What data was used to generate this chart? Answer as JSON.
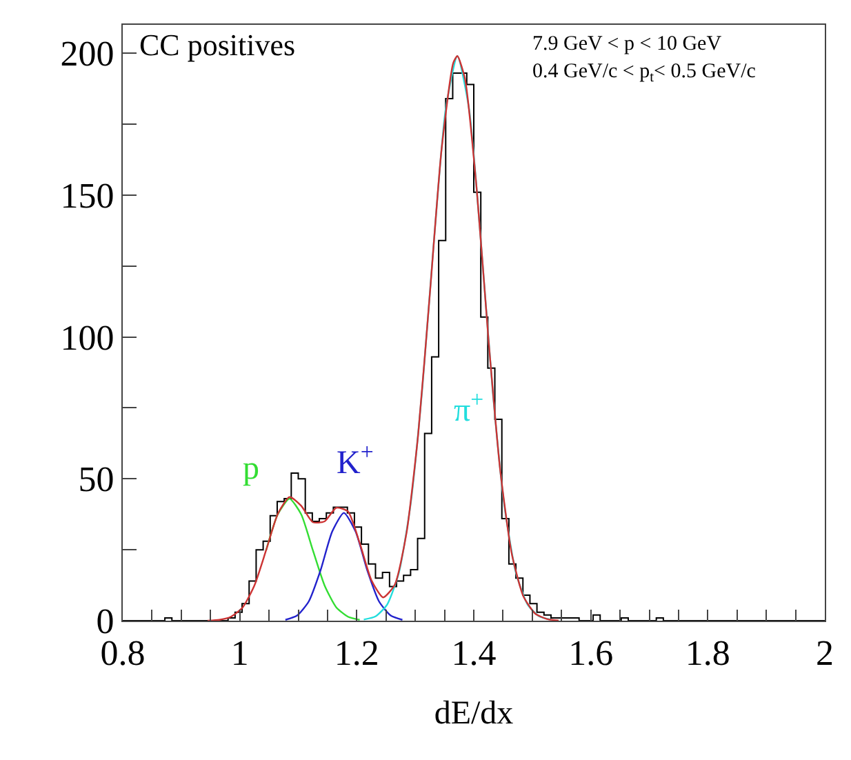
{
  "chart_data": {
    "type": "histogram",
    "xlabel": "dE/dx",
    "annotations": [
      "CC positives",
      "7.9 GeV < p < 10 GeV",
      "0.4 GeV/c < p$_{t}$< 0.5 GeV/c"
    ],
    "bins": [
      0.8,
      0.812,
      0.824,
      0.836,
      0.848,
      0.86,
      0.872,
      0.884,
      0.896,
      0.908,
      0.92,
      0.932,
      0.944,
      0.956,
      0.968,
      0.98,
      0.992,
      1.004,
      1.016,
      1.028,
      1.04,
      1.052,
      1.064,
      1.076,
      1.088,
      1.1,
      1.112,
      1.124,
      1.136,
      1.148,
      1.16,
      1.172,
      1.184,
      1.196,
      1.208,
      1.22,
      1.232,
      1.244,
      1.256,
      1.268,
      1.28,
      1.292,
      1.304,
      1.316,
      1.328,
      1.34,
      1.352,
      1.364,
      1.376,
      1.388,
      1.4,
      1.412,
      1.424,
      1.436,
      1.448,
      1.46,
      1.472,
      1.484,
      1.496,
      1.508,
      1.52,
      1.532,
      1.544,
      1.556,
      1.568,
      1.58,
      1.592,
      1.604,
      1.616,
      1.628,
      1.64,
      1.652,
      1.664,
      1.676,
      1.688,
      1.7,
      1.712,
      1.724,
      1.736,
      1.748,
      1.76,
      1.772,
      1.784,
      1.796,
      1.808,
      1.82,
      1.832,
      1.844,
      1.856,
      1.868,
      1.88,
      1.892,
      1.904,
      1.916,
      1.928,
      1.94,
      1.952,
      1.964,
      1.976,
      1.988,
      2.0
    ],
    "values": [
      0,
      0,
      0,
      0,
      0,
      0,
      1,
      0,
      0,
      0,
      0,
      0,
      0,
      0,
      0,
      1,
      3,
      6,
      14,
      25,
      28,
      37,
      42,
      43,
      52,
      50,
      38,
      35,
      36,
      38,
      40,
      40,
      38,
      33,
      27,
      20,
      15,
      17,
      12,
      14,
      16,
      18,
      29,
      66,
      93,
      134,
      184,
      193,
      193,
      189,
      151,
      107,
      89,
      71,
      36,
      20,
      15,
      9,
      6,
      3,
      2,
      1,
      1,
      1,
      1,
      0,
      0,
      2,
      0,
      0,
      0,
      1,
      0,
      0,
      0,
      0,
      1,
      0,
      0,
      0,
      0,
      0,
      0,
      0,
      0,
      0,
      0,
      0,
      0,
      0,
      0,
      0,
      0,
      0,
      0,
      0,
      0,
      0,
      0,
      0
    ],
    "color": "#000000",
    "series": [
      {
        "type": "line",
        "name": "p",
        "color": "#33dd33",
        "x": [
          1.045,
          1.065,
          1.085,
          1.105,
          1.125,
          1.145,
          1.165,
          1.185,
          1.205
        ],
        "values": [
          24.8,
          37.5,
          43,
          37.5,
          24.8,
          12.4,
          4.7,
          1.4,
          0.3
        ]
      },
      {
        "type": "line",
        "name": "K$^{+}$",
        "color": "#2222cc",
        "x": [
          1.078,
          1.098,
          1.118,
          1.138,
          1.158,
          1.178,
          1.198,
          1.218,
          1.238,
          1.258,
          1.278
        ],
        "values": [
          0.3,
          1.8,
          6.8,
          17.7,
          31.4,
          38,
          31.4,
          17.7,
          6.8,
          1.8,
          0.3
        ]
      },
      {
        "type": "line",
        "name": "π$^{+}$",
        "color": "#22dddd",
        "x": [
          1.212,
          1.232,
          1.252,
          1.272,
          1.292,
          1.312,
          1.332,
          1.352,
          1.372,
          1.392,
          1.412,
          1.432,
          1.452,
          1.472,
          1.492,
          1.512,
          1.532
        ],
        "values": [
          0.4,
          1.5,
          5.7,
          16.9,
          41.0,
          81.8,
          134.1,
          180.3,
          199,
          180.3,
          134.1,
          81.8,
          41.0,
          16.9,
          5.7,
          1.5,
          0.4
        ]
      },
      {
        "type": "line",
        "color": "#cc3333",
        "x": [
          0.945,
          0.965,
          0.985,
          1.005,
          1.025,
          1.045,
          1.065,
          1.085,
          1.105,
          1.125,
          1.145,
          1.165,
          1.185,
          1.205,
          1.225,
          1.245,
          1.265,
          1.285,
          1.305,
          1.325,
          1.345,
          1.365,
          1.372,
          1.385,
          1.405,
          1.425,
          1.445,
          1.465,
          1.485,
          1.505,
          1.525,
          1.545
        ],
        "values": [
          0,
          0.3,
          1.4,
          4.7,
          12.4,
          24.8,
          37.6,
          43.6,
          40.5,
          34.7,
          35.0,
          39.8,
          38.5,
          27.4,
          14.3,
          8.2,
          12.7,
          30.9,
          65.7,
          115.4,
          166.2,
          196.6,
          199,
          190.9,
          152.1,
          99.5,
          53.4,
          23.5,
          8.5,
          2.5,
          0.6,
          0.1
        ]
      }
    ],
    "xlim": [
      0.8,
      2
    ],
    "ylim": [
      0,
      210
    ],
    "xticks": [
      0.8,
      {
        "value": 0.85,
        "label": null
      },
      {
        "value": 0.9,
        "label": null
      },
      {
        "value": 0.95,
        "label": null
      },
      1,
      {
        "value": 1.05,
        "label": null
      },
      {
        "value": 1.1,
        "label": null
      },
      {
        "value": 1.15,
        "label": null
      },
      1.2,
      {
        "value": 1.25,
        "label": null
      },
      {
        "value": 1.3,
        "label": null
      },
      {
        "value": 1.35,
        "label": null
      },
      1.4,
      {
        "value": 1.45,
        "label": null
      },
      {
        "value": 1.5,
        "label": null
      },
      {
        "value": 1.55,
        "label": null
      },
      1.6,
      {
        "value": 1.65,
        "label": null
      },
      {
        "value": 1.7,
        "label": null
      },
      {
        "value": 1.75,
        "label": null
      },
      1.8,
      {
        "value": 1.85,
        "label": null
      },
      {
        "value": 1.9,
        "label": null
      },
      {
        "value": 1.95,
        "label": null
      },
      2
    ],
    "yticks": [
      0,
      {
        "value": 25,
        "label": null
      },
      50,
      {
        "value": 75,
        "label": null
      },
      100,
      {
        "value": 125,
        "label": null
      },
      150,
      {
        "value": 175,
        "label": null
      },
      200
    ],
    "legend": false,
    "marker": "none",
    "line_style": "solid"
  }
}
